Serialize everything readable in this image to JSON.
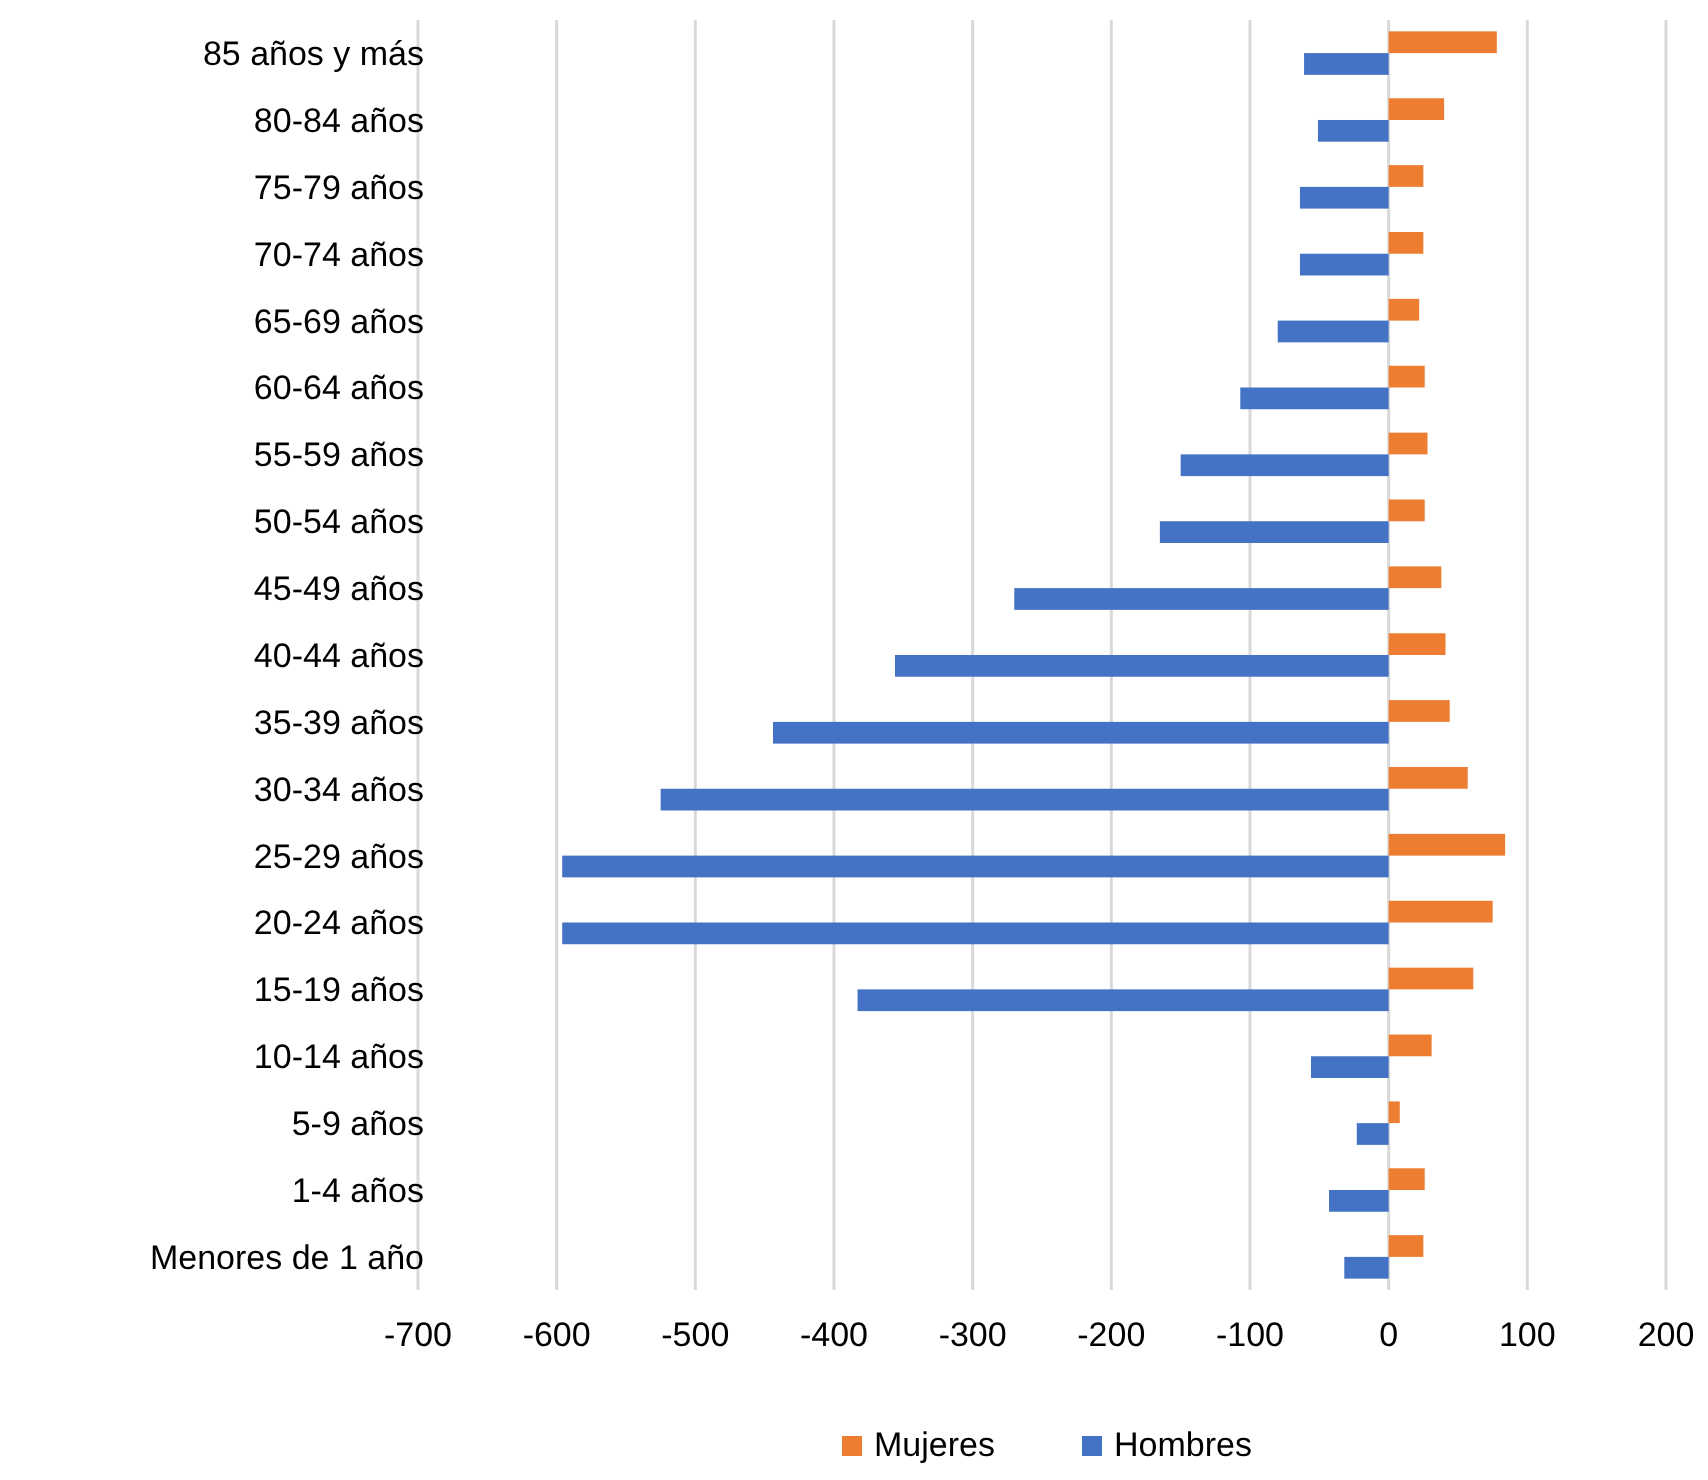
{
  "chart_data": {
    "type": "bar",
    "orientation": "horizontal",
    "categories": [
      "85 años y más",
      "80-84 años",
      "75-79 años",
      "70-74 años",
      "65-69 años",
      "60-64 años",
      "55-59 años",
      "50-54 años",
      "45-49 años",
      "40-44 años",
      "35-39 años",
      "30-34 años",
      "25-29 años",
      "20-24 años",
      "15-19 años",
      "10-14 años",
      "5-9 años",
      "1-4 años",
      "Menores de 1 año"
    ],
    "series": [
      {
        "name": "Mujeres",
        "color": "#ed7d31",
        "values": [
          78,
          40,
          25,
          25,
          22,
          26,
          28,
          26,
          38,
          41,
          44,
          57,
          84,
          75,
          61,
          31,
          8,
          26,
          25
        ]
      },
      {
        "name": "Hombres",
        "color": "#4472c4",
        "values": [
          -61,
          -51,
          -64,
          -64,
          -80,
          -107,
          -150,
          -165,
          -270,
          -356,
          -444,
          -525,
          -596,
          -596,
          -383,
          -56,
          -23,
          -43,
          -32
        ]
      }
    ],
    "xlim": [
      -700,
      200
    ],
    "xticks": [
      -700,
      -600,
      -500,
      -400,
      -300,
      -200,
      -100,
      0,
      100,
      200
    ],
    "grid": "x",
    "legend": "bottom"
  }
}
